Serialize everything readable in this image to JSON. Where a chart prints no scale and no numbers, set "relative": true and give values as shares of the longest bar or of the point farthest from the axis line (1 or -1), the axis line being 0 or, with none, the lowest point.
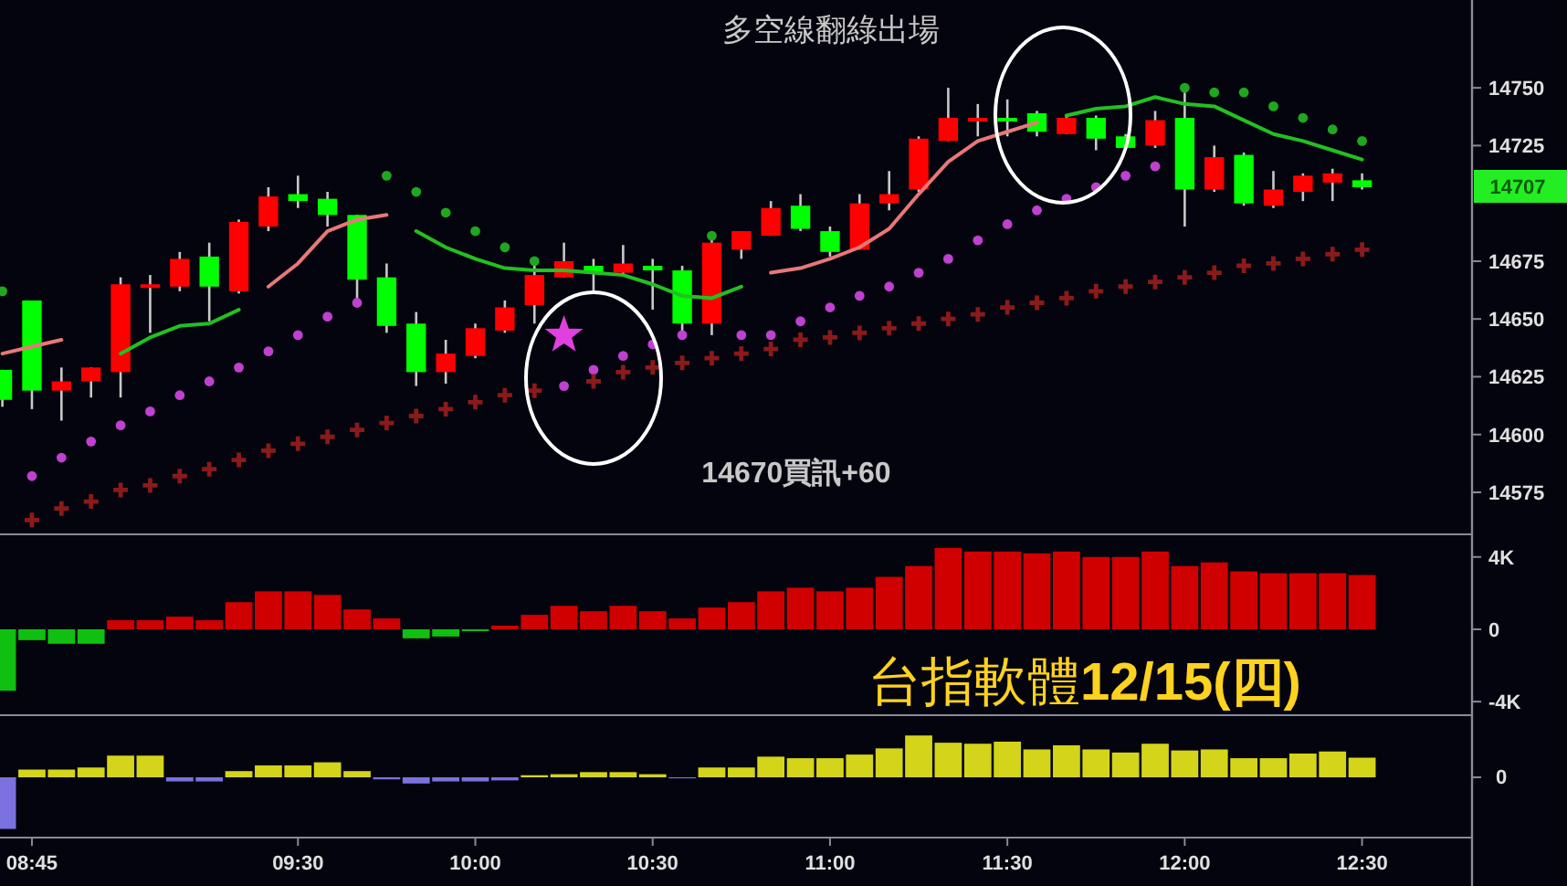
{
  "chart_data": [
    {
      "type": "candlestick",
      "xlim": [
        8.66,
        12.81
      ],
      "ylim": [
        14558,
        14788
      ],
      "yticks": [
        14575,
        14600,
        14625,
        14650,
        14675,
        14725,
        14750
      ],
      "tick_labels": "y",
      "x": [
        8.6667,
        8.75,
        8.8333,
        8.9167,
        9.0,
        9.0833,
        9.1667,
        9.25,
        9.3333,
        9.4167,
        9.5,
        9.5833,
        9.6667,
        9.75,
        9.8333,
        9.9167,
        10.0,
        10.0833,
        10.1667,
        10.25,
        10.3333,
        10.4167,
        10.5,
        10.5833,
        10.6667,
        10.75,
        10.8333,
        10.9167,
        11.0,
        11.0833,
        11.1667,
        11.25,
        11.3333,
        11.4167,
        11.5,
        11.5833,
        11.6667,
        11.75,
        11.8333,
        11.9167,
        12.0,
        12.0833,
        12.1667,
        12.25,
        12.3333,
        12.4167,
        12.5
      ],
      "ohlc": [
        [
          14628,
          14628,
          14612,
          14615
        ],
        [
          14658,
          14658,
          14611,
          14619
        ],
        [
          14619,
          14629,
          14606,
          14623
        ],
        [
          14623,
          14629,
          14616,
          14629
        ],
        [
          14627,
          14668,
          14616,
          14665
        ],
        [
          14664,
          14669,
          14644,
          14665
        ],
        [
          14664,
          14679,
          14662,
          14676
        ],
        [
          14677,
          14683,
          14649,
          14664
        ],
        [
          14662,
          14693,
          14661,
          14692
        ],
        [
          14690,
          14707,
          14688,
          14703
        ],
        [
          14704,
          14712,
          14698,
          14701
        ],
        [
          14702,
          14705,
          14690,
          14695
        ],
        [
          14695,
          14695,
          14657,
          14667
        ],
        [
          14668,
          14674,
          14644,
          14647
        ],
        [
          14648,
          14653,
          14621,
          14627
        ],
        [
          14627,
          14641,
          14622,
          14635
        ],
        [
          14634,
          14648,
          14633,
          14646
        ],
        [
          14645,
          14658,
          14644,
          14655
        ],
        [
          14656,
          14674,
          14648,
          14669
        ],
        [
          14668,
          14683,
          14668,
          14675
        ],
        [
          14673,
          14676,
          14662,
          14670
        ],
        [
          14670,
          14682,
          14669,
          14674
        ],
        [
          14673,
          14676,
          14654,
          14671
        ],
        [
          14671,
          14673,
          14644,
          14648
        ],
        [
          14648,
          14685,
          14643,
          14683
        ],
        [
          14680,
          14688,
          14676,
          14688
        ],
        [
          14686,
          14701,
          14686,
          14698
        ],
        [
          14699,
          14704,
          14688,
          14689
        ],
        [
          14688,
          14690,
          14677,
          14679
        ],
        [
          14680,
          14704,
          14680,
          14700
        ],
        [
          14700,
          14714,
          14697,
          14704
        ],
        [
          14706,
          14729,
          14705,
          14728
        ],
        [
          14727,
          14750,
          14727,
          14737
        ],
        [
          14736,
          14743,
          14729,
          14737
        ],
        [
          14737,
          14745,
          14729,
          14736
        ],
        [
          14739,
          14740,
          14729,
          14731
        ],
        [
          14730,
          14738,
          14730,
          14737
        ],
        [
          14737,
          14738,
          14723,
          14728
        ],
        [
          14729,
          14730,
          14724,
          14724
        ],
        [
          14725,
          14740,
          14724,
          14736
        ],
        [
          14737,
          14748,
          14690,
          14706
        ],
        [
          14706,
          14725,
          14705,
          14720
        ],
        [
          14721,
          14722,
          14699,
          14700
        ],
        [
          14699,
          14714,
          14698,
          14706
        ],
        [
          14705,
          14713,
          14701,
          14712
        ],
        [
          14709,
          14715,
          14701,
          14713
        ],
        [
          14710,
          14713,
          14706,
          14707
        ]
      ],
      "colors": [
        "#00ff00",
        "#00ff00",
        "#ff0000",
        "#ff0000",
        "#ff0000",
        "#ff0000",
        "#ff0000",
        "#00ff00",
        "#ff0000",
        "#ff0000",
        "#00ff00",
        "#00ff00",
        "#00ff00",
        "#00ff00",
        "#00ff00",
        "#ff0000",
        "#ff0000",
        "#ff0000",
        "#ff0000",
        "#ff0000",
        "#00ff00",
        "#ff0000",
        "#00ff00",
        "#00ff00",
        "#ff0000",
        "#ff0000",
        "#ff0000",
        "#00ff00",
        "#00ff00",
        "#ff0000",
        "#ff0000",
        "#ff0000",
        "#ff0000",
        "#ff0000",
        "#00ff00",
        "#00ff00",
        "#ff0000",
        "#00ff00",
        "#00ff00",
        "#ff0000",
        "#00ff00",
        "#ff0000",
        "#00ff00",
        "#ff0000",
        "#ff0000",
        "#ff0000",
        "#00ff00"
      ],
      "series": [
        {
          "type": "line",
          "color": "#e87878",
          "values": [
            14635,
            14638,
            14641,
            null,
            null,
            null,
            null,
            null,
            null,
            14664,
            14674,
            14688,
            14693,
            14695,
            null,
            null,
            null,
            null,
            null,
            null,
            null,
            null,
            null,
            null,
            null,
            null,
            14670,
            14672,
            14676,
            14681,
            14689,
            14704,
            14718,
            14727,
            14731,
            14735,
            null,
            null,
            null,
            null,
            null,
            null,
            null,
            null,
            null,
            null,
            null
          ]
        },
        {
          "type": "line",
          "color": "#22c022",
          "values": [
            null,
            null,
            null,
            null,
            14635,
            14642,
            14647,
            14648,
            14654,
            null,
            null,
            null,
            null,
            null,
            14688,
            14681,
            14676,
            14672,
            14671,
            14671,
            14670,
            14669,
            14665,
            14660,
            14659,
            14664,
            null,
            null,
            null,
            null,
            null,
            null,
            null,
            null,
            null,
            null,
            14738,
            14741,
            14742,
            14746,
            14743,
            14742,
            14736,
            14730,
            14727,
            14723,
            14719
          ]
        },
        {
          "type": "scatter",
          "marker": "circle",
          "color": "#1fa81f",
          "values": [
            14662,
            null,
            null,
            null,
            null,
            null,
            null,
            null,
            null,
            null,
            null,
            null,
            null,
            14712,
            14705,
            14696,
            14688,
            14681,
            14675,
            null,
            null,
            null,
            null,
            null,
            14686,
            null,
            null,
            null,
            null,
            null,
            null,
            null,
            null,
            null,
            null,
            null,
            null,
            null,
            null,
            null,
            14750,
            14748,
            14748,
            14742,
            14737,
            14732,
            14727
          ]
        },
        {
          "type": "scatter",
          "marker": "circle",
          "color": "#c040d0",
          "values": [
            null,
            14582,
            14590,
            14597,
            14604,
            14610,
            14617,
            14623,
            14629,
            14636,
            14643,
            14651,
            14657,
            null,
            null,
            null,
            null,
            null,
            null,
            14621,
            14628,
            14634,
            14639,
            14643,
            null,
            14643,
            14643,
            14649,
            14655,
            14660,
            14664,
            14670,
            14676,
            14684,
            14691,
            14697,
            14702,
            14707,
            14712,
            14716,
            null,
            null,
            null,
            null,
            null,
            null,
            null
          ]
        },
        {
          "type": "scatter",
          "marker": "cross",
          "color": "#8b1a1a",
          "values": [
            null,
            14563,
            14568,
            14571,
            14576,
            14578,
            14582,
            14585,
            14589,
            14593,
            14596,
            14599,
            14602,
            14605,
            14608,
            14611,
            14614,
            14617,
            14619,
            null,
            14623,
            14627,
            14629,
            14631,
            14633,
            14635,
            14637,
            14641,
            14642,
            14644,
            14646,
            14648,
            14650,
            14652,
            14655,
            14657,
            14659,
            14662,
            14664,
            14666,
            14668,
            14670,
            14673,
            14674,
            14676,
            14678,
            14680
          ]
        },
        {
          "type": "scatter",
          "marker": "star",
          "color": "#e040e0",
          "x": [
            10.25
          ],
          "values": [
            14643
          ]
        }
      ],
      "annotations": [
        "多空線翻綠出場",
        "14670買訊+60",
        "14707"
      ]
    },
    {
      "type": "bar",
      "xlim": [
        8.66,
        12.81
      ],
      "ylim": [
        -4700,
        5100
      ],
      "yticks": [
        {
          "value": 4000,
          "label": "4K"
        },
        0,
        {
          "value": -4000,
          "label": "-4K"
        }
      ],
      "tick_labels": "y",
      "x": [
        8.6667,
        8.75,
        8.8333,
        8.9167,
        9.0,
        9.0833,
        9.1667,
        9.25,
        9.3333,
        9.4167,
        9.5,
        9.5833,
        9.6667,
        9.75,
        9.8333,
        9.9167,
        10.0,
        10.0833,
        10.1667,
        10.25,
        10.3333,
        10.4167,
        10.5,
        10.5833,
        10.6667,
        10.75,
        10.8333,
        10.9167,
        11.0,
        11.0833,
        11.1667,
        11.25,
        11.3333,
        11.4167,
        11.5,
        11.5833,
        11.6667,
        11.75,
        11.8333,
        11.9167,
        12.0,
        12.0833,
        12.1667,
        12.25,
        12.3333,
        12.4167,
        12.5
      ],
      "values": [
        -3400,
        -600,
        -800,
        -800,
        500,
        500,
        700,
        500,
        1500,
        2100,
        2100,
        1900,
        1100,
        600,
        -500,
        -400,
        -100,
        200,
        800,
        1300,
        1000,
        1300,
        1000,
        600,
        1200,
        1500,
        2100,
        2300,
        2100,
        2300,
        2900,
        3500,
        4500,
        4300,
        4300,
        4200,
        4300,
        4000,
        4000,
        4300,
        3500,
        3700,
        3200,
        3100,
        3100,
        3100,
        3000
      ],
      "colors": [
        "#10c010",
        "#10c010",
        "#10c010",
        "#10c010",
        "#d00000",
        "#d00000",
        "#d00000",
        "#d00000",
        "#d00000",
        "#d00000",
        "#d00000",
        "#d00000",
        "#d00000",
        "#d00000",
        "#10c010",
        "#10c010",
        "#10c010",
        "#d00000",
        "#d00000",
        "#d00000",
        "#d00000",
        "#d00000",
        "#d00000",
        "#d00000",
        "#d00000",
        "#d00000",
        "#d00000",
        "#d00000",
        "#d00000",
        "#d00000",
        "#d00000",
        "#d00000",
        "#d00000",
        "#d00000",
        "#d00000",
        "#d00000",
        "#d00000",
        "#d00000",
        "#d00000",
        "#d00000",
        "#d00000",
        "#d00000",
        "#d00000",
        "#d00000",
        "#d00000",
        "#d00000",
        "#d00000"
      ],
      "annotations": [
        "台指軟體**12/15(四)**"
      ]
    },
    {
      "type": "bar",
      "relative": true,
      "xlim": [
        8.66,
        12.81
      ],
      "xticks": [
        {
          "value": 8.75,
          "label": "08:45"
        },
        {
          "value": 9.5,
          "label": "09:30"
        },
        {
          "value": 10,
          "label": "10:00"
        },
        {
          "value": 10.5,
          "label": "10:30"
        },
        {
          "value": 11,
          "label": "11:00"
        },
        {
          "value": 11.5,
          "label": "11:30"
        },
        {
          "value": 12,
          "label": "12:00"
        },
        {
          "value": 12.5,
          "label": "12:30"
        }
      ],
      "tick_labels": "x",
      "x": [
        8.6667,
        8.75,
        8.8333,
        8.9167,
        9.0,
        9.0833,
        9.1667,
        9.25,
        9.3333,
        9.4167,
        9.5,
        9.5833,
        9.6667,
        9.75,
        9.8333,
        9.9167,
        10.0,
        10.0833,
        10.1667,
        10.25,
        10.3333,
        10.4167,
        10.5,
        10.5833,
        10.6667,
        10.75,
        10.8333,
        10.9167,
        11.0,
        11.0833,
        11.1667,
        11.25,
        11.3333,
        11.4167,
        11.5,
        11.5833,
        11.6667,
        11.75,
        11.8333,
        11.9167,
        12.0,
        12.0833,
        12.1667,
        12.25,
        12.3333,
        12.4167,
        12.5
      ],
      "values": [
        -1,
        0.15,
        0.15,
        0.19,
        0.42,
        0.42,
        -0.08,
        -0.08,
        0.12,
        0.23,
        0.23,
        0.29,
        0.12,
        -0.04,
        -0.12,
        -0.08,
        -0.08,
        -0.06,
        0.04,
        0.06,
        0.1,
        0.1,
        0.06,
        -0.02,
        0.19,
        0.19,
        0.4,
        0.37,
        0.37,
        0.44,
        0.56,
        0.81,
        0.67,
        0.65,
        0.69,
        0.54,
        0.62,
        0.54,
        0.48,
        0.65,
        0.52,
        0.54,
        0.37,
        0.37,
        0.46,
        0.5,
        0.38
      ],
      "colors": [
        "#7a72e0",
        "#d4d41a",
        "#d4d41a",
        "#d4d41a",
        "#d4d41a",
        "#d4d41a",
        "#7a72e0",
        "#7a72e0",
        "#d4d41a",
        "#d4d41a",
        "#d4d41a",
        "#d4d41a",
        "#d4d41a",
        "#7a72e0",
        "#7a72e0",
        "#7a72e0",
        "#7a72e0",
        "#7a72e0",
        "#d4d41a",
        "#d4d41a",
        "#d4d41a",
        "#d4d41a",
        "#d4d41a",
        "#7a72e0",
        "#d4d41a",
        "#d4d41a",
        "#d4d41a",
        "#d4d41a",
        "#d4d41a",
        "#d4d41a",
        "#d4d41a",
        "#d4d41a",
        "#d4d41a",
        "#d4d41a",
        "#d4d41a",
        "#d4d41a",
        "#d4d41a",
        "#d4d41a",
        "#d4d41a",
        "#d4d41a",
        "#d4d41a",
        "#d4d41a",
        "#d4d41a",
        "#d4d41a",
        "#d4d41a",
        "#d4d41a",
        "#d4d41a"
      ],
      "annotations": [
        "0"
      ]
    }
  ]
}
